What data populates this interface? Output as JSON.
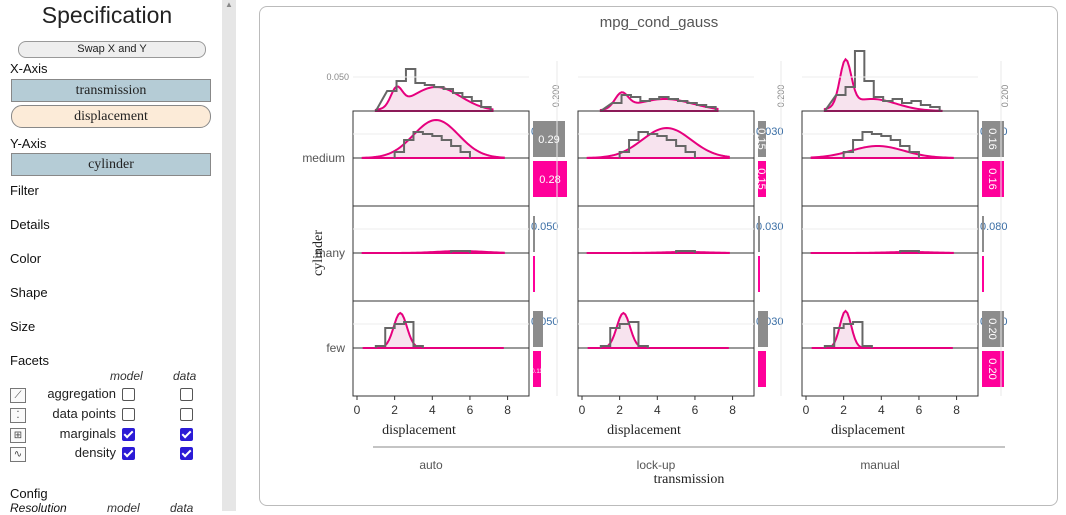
{
  "sidebar": {
    "title": "Specification",
    "swap_label": "Swap X and Y",
    "x_axis_label": "X-Axis",
    "x_fields": [
      "transmission",
      "displacement"
    ],
    "y_axis_label": "Y-Axis",
    "y_fields": [
      "cylinder"
    ],
    "shelves": [
      "Filter",
      "Details",
      "Color",
      "Shape",
      "Size",
      "Facets"
    ],
    "facet_columns": [
      "model",
      "data"
    ],
    "facets": [
      {
        "name": "aggregation",
        "icon": "line-chart-icon",
        "model": false,
        "data": false
      },
      {
        "name": "data points",
        "icon": "scatter-icon",
        "model": false,
        "data": false
      },
      {
        "name": "marginals",
        "icon": "marginals-icon",
        "model": true,
        "data": true
      },
      {
        "name": "density",
        "icon": "density-icon",
        "model": true,
        "data": true
      }
    ],
    "config_label": "Config",
    "resolution_label": "Resolution",
    "resolution_columns": [
      "model",
      "data"
    ]
  },
  "chart_data": {
    "type": "area",
    "title": "mpg_cond_gauss",
    "xlabel": "displacement",
    "ylabel": "cylinder",
    "facet_label": "transmission",
    "columns": [
      "auto",
      "lock-up",
      "manual"
    ],
    "rows": [
      "medium",
      "many",
      "few"
    ],
    "x_ticks": [
      0,
      2,
      4,
      6,
      8
    ],
    "xlim": [
      0,
      8.5
    ],
    "marginal_y_tick": [
      "0.050",
      "",
      ""
    ],
    "marginal_right_tick": [
      "0.200",
      "0.200",
      "0.200"
    ],
    "row_density_ticks": [
      [
        "0.050",
        "0.050",
        "0.050"
      ],
      [
        "0.030",
        "0.030",
        "0.030"
      ],
      [
        "0.080",
        "0.080",
        "0.080"
      ]
    ],
    "bars": {
      "medium": {
        "model": [
          "0.29",
          "0.15",
          "0.16"
        ],
        "data": [
          "0.28",
          "0.15",
          "0.16"
        ]
      },
      "many": {
        "model": [
          "",
          "",
          ""
        ],
        "data": [
          "",
          "",
          ""
        ]
      },
      "few": {
        "model": [
          "",
          "",
          "0.20"
        ],
        "data": [
          "0.11",
          "",
          "0.20"
        ]
      }
    },
    "colors": {
      "model": "#e6007e",
      "data": "#666666",
      "fill": "#f7e3ee",
      "tick": "#3a6ea5",
      "bar_model": "#8c8c8c",
      "bar_data": "#ff009a"
    }
  }
}
